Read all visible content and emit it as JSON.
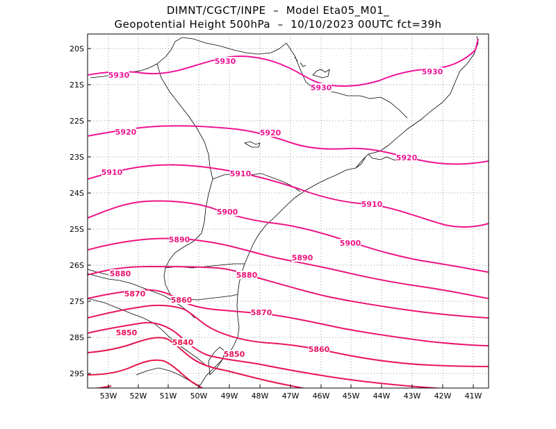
{
  "title_line1": "DIMNT/CGCT/INPE  –  Model Eta05_M01_",
  "title_line2": "Geopotential Height 500hPa  –  10/10/2023 00UTC fct=39h",
  "lat_labels": [
    "20S",
    "21S",
    "22S",
    "23S",
    "24S",
    "25S",
    "26S",
    "27S",
    "28S",
    "29S"
  ],
  "lon_labels": [
    "53W",
    "52W",
    "51W",
    "50W",
    "49W",
    "48W",
    "47W",
    "46W",
    "45W",
    "44W",
    "43W",
    "42W",
    "41W"
  ],
  "contour_labels": [
    {
      "text": "5930",
      "color": "#f0149b"
    },
    {
      "text": "5930",
      "color": "#f0149b"
    },
    {
      "text": "5930",
      "color": "#f0149b"
    },
    {
      "text": "5930",
      "color": "#f0149b"
    },
    {
      "text": "5920",
      "color": "#ee1493"
    },
    {
      "text": "5920",
      "color": "#ee1493"
    },
    {
      "text": "5920",
      "color": "#ee1493"
    },
    {
      "text": "5910",
      "color": "#ee148a"
    },
    {
      "text": "5910",
      "color": "#ee148a"
    },
    {
      "text": "5910",
      "color": "#ee148a"
    },
    {
      "text": "5900",
      "color": "#ec1484"
    },
    {
      "text": "5900",
      "color": "#ec1484"
    },
    {
      "text": "5890",
      "color": "#ec147c"
    },
    {
      "text": "5890",
      "color": "#ec147c"
    },
    {
      "text": "5880",
      "color": "#ea1474"
    },
    {
      "text": "5880",
      "color": "#ea1474"
    },
    {
      "text": "5870",
      "color": "#ea146c"
    },
    {
      "text": "5870",
      "color": "#ea146c"
    },
    {
      "text": "5860",
      "color": "#e81464"
    },
    {
      "text": "5860",
      "color": "#e81464"
    },
    {
      "text": "5850",
      "color": "#e8145a"
    },
    {
      "text": "5850",
      "color": "#e8145a"
    },
    {
      "text": "5840",
      "color": "#e61450"
    }
  ]
}
